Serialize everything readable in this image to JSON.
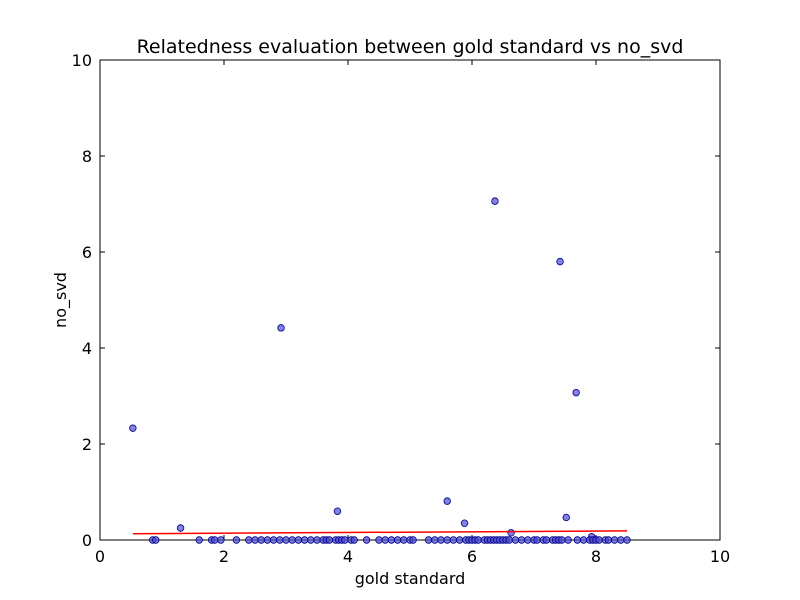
{
  "chart_data": {
    "type": "scatter",
    "title": "Relatedness evaluation between gold standard vs no_svd",
    "xlabel": "gold standard",
    "ylabel": "no_svd",
    "xlim": [
      0,
      10
    ],
    "ylim": [
      0,
      10
    ],
    "xticks": [
      "0",
      "2",
      "4",
      "6",
      "8",
      "10"
    ],
    "yticks": [
      "0",
      "2",
      "4",
      "6",
      "8",
      "10"
    ],
    "grid": false,
    "marker_color": "#4b4bd2",
    "marker_edge_color": "#00008b",
    "line_color": "#ff0000",
    "points": [
      [
        0.53,
        2.33
      ],
      [
        1.3,
        0.25
      ],
      [
        2.92,
        4.42
      ],
      [
        3.83,
        0.6
      ],
      [
        5.6,
        0.81
      ],
      [
        5.88,
        0.35
      ],
      [
        6.37,
        7.06
      ],
      [
        6.63,
        0.15
      ],
      [
        7.42,
        5.8
      ],
      [
        7.52,
        0.47
      ],
      [
        7.68,
        3.07
      ],
      [
        7.93,
        0.07
      ],
      [
        0.85,
        0
      ],
      [
        0.9,
        0
      ],
      [
        1.6,
        0
      ],
      [
        1.8,
        0
      ],
      [
        1.85,
        0
      ],
      [
        1.95,
        0
      ],
      [
        2.2,
        0
      ],
      [
        2.4,
        0
      ],
      [
        2.5,
        0
      ],
      [
        2.6,
        0
      ],
      [
        2.7,
        0
      ],
      [
        2.8,
        0
      ],
      [
        2.9,
        0
      ],
      [
        3.0,
        0
      ],
      [
        3.1,
        0
      ],
      [
        3.2,
        0
      ],
      [
        3.3,
        0
      ],
      [
        3.4,
        0
      ],
      [
        3.5,
        0
      ],
      [
        3.6,
        0
      ],
      [
        3.65,
        0
      ],
      [
        3.7,
        0
      ],
      [
        3.8,
        0
      ],
      [
        3.85,
        0
      ],
      [
        3.9,
        0
      ],
      [
        3.95,
        0
      ],
      [
        4.05,
        0
      ],
      [
        4.1,
        0
      ],
      [
        4.3,
        0
      ],
      [
        4.5,
        0
      ],
      [
        4.6,
        0
      ],
      [
        4.7,
        0
      ],
      [
        4.8,
        0
      ],
      [
        4.9,
        0
      ],
      [
        5.0,
        0
      ],
      [
        5.05,
        0
      ],
      [
        5.3,
        0
      ],
      [
        5.4,
        0
      ],
      [
        5.5,
        0
      ],
      [
        5.6,
        0
      ],
      [
        5.7,
        0
      ],
      [
        5.8,
        0
      ],
      [
        5.9,
        0
      ],
      [
        5.95,
        0
      ],
      [
        6.0,
        0
      ],
      [
        6.05,
        0
      ],
      [
        6.1,
        0
      ],
      [
        6.2,
        0
      ],
      [
        6.25,
        0
      ],
      [
        6.3,
        0
      ],
      [
        6.35,
        0
      ],
      [
        6.4,
        0
      ],
      [
        6.45,
        0
      ],
      [
        6.5,
        0
      ],
      [
        6.55,
        0
      ],
      [
        6.6,
        0
      ],
      [
        6.7,
        0
      ],
      [
        6.8,
        0
      ],
      [
        6.9,
        0
      ],
      [
        7.0,
        0
      ],
      [
        7.05,
        0
      ],
      [
        7.15,
        0
      ],
      [
        7.2,
        0
      ],
      [
        7.3,
        0
      ],
      [
        7.35,
        0
      ],
      [
        7.4,
        0
      ],
      [
        7.45,
        0
      ],
      [
        7.55,
        0
      ],
      [
        7.7,
        0
      ],
      [
        7.8,
        0
      ],
      [
        7.9,
        0
      ],
      [
        7.95,
        0
      ],
      [
        8.0,
        0
      ],
      [
        8.05,
        0
      ],
      [
        8.15,
        0
      ],
      [
        8.2,
        0
      ],
      [
        8.3,
        0
      ],
      [
        8.4,
        0
      ],
      [
        8.5,
        0
      ]
    ],
    "fit_line": {
      "x": [
        0.53,
        8.5
      ],
      "y": [
        0.13,
        0.19
      ]
    }
  }
}
